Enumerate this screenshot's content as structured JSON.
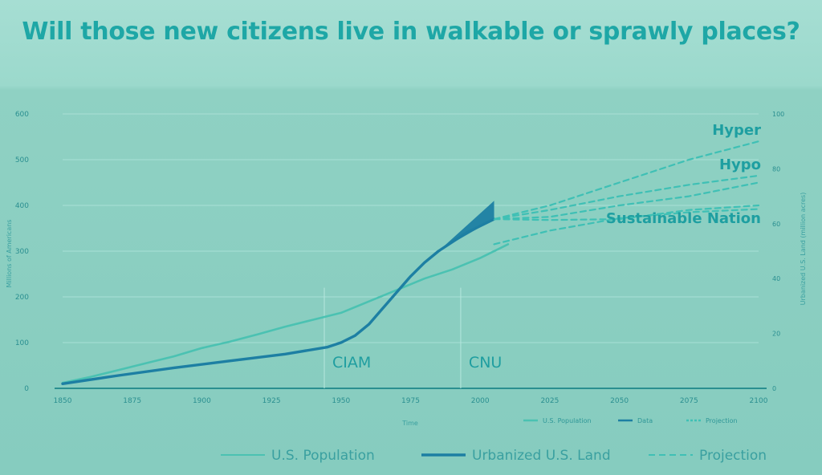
{
  "title": "Will those new citizens live in walkable or sprawly places?",
  "colors": {
    "population": "#4bc2b2",
    "urbanized": "#1d7fa3",
    "projection": "#3fc0b5",
    "axis": "#2a8f90"
  },
  "chart_data": {
    "type": "line",
    "xlabel": "Time",
    "ylabel": "Millions of Americans",
    "y2label": "Urbanized U.S. Land (million acres)",
    "xlim": [
      1850,
      2100
    ],
    "ylim": [
      0,
      600
    ],
    "y2lim": [
      0,
      100
    ],
    "x_ticks": [
      1850,
      1875,
      1900,
      1925,
      1950,
      1975,
      2000,
      2025,
      2050,
      2075,
      2100
    ],
    "y_ticks": [
      0,
      100,
      200,
      300,
      400,
      500,
      600
    ],
    "y2_ticks": [
      0,
      20,
      40,
      60,
      80,
      100
    ],
    "series": [
      {
        "name": "U.S. Population",
        "axis": "left",
        "style": "solid",
        "x": [
          1850,
          1860,
          1870,
          1880,
          1890,
          1900,
          1910,
          1920,
          1930,
          1940,
          1950,
          1960,
          1970,
          1980,
          1990,
          2000,
          2010
        ],
        "y": [
          12,
          25,
          40,
          55,
          70,
          88,
          102,
          118,
          135,
          150,
          165,
          190,
          215,
          240,
          260,
          285,
          315
        ]
      },
      {
        "name": "Urbanized U.S. Land",
        "axis": "left",
        "style": "solid",
        "x": [
          1850,
          1870,
          1890,
          1910,
          1930,
          1945,
          1950,
          1955,
          1960,
          1965,
          1970,
          1975,
          1980,
          1985,
          1990,
          1995,
          2000,
          2005
        ],
        "y": [
          10,
          28,
          45,
          60,
          75,
          90,
          100,
          115,
          140,
          175,
          210,
          245,
          275,
          300,
          320,
          340,
          355,
          370
        ]
      },
      {
        "name": "Hyper",
        "axis": "left",
        "style": "dashed",
        "x": [
          2005,
          2025,
          2050,
          2075,
          2100
        ],
        "y": [
          370,
          400,
          450,
          500,
          540
        ]
      },
      {
        "name": "Hypo",
        "axis": "left",
        "style": "dashed",
        "x": [
          2005,
          2025,
          2050,
          2075,
          2100
        ],
        "y": [
          370,
          390,
          420,
          445,
          465
        ]
      },
      {
        "name": "",
        "axis": "left",
        "style": "dashed",
        "x": [
          2005,
          2025,
          2050,
          2075,
          2100
        ],
        "y": [
          370,
          375,
          400,
          420,
          450
        ]
      },
      {
        "name": "Sustainable Nation",
        "axis": "left",
        "style": "dashed",
        "x": [
          2005,
          2025,
          2050,
          2075,
          2100
        ],
        "y": [
          370,
          368,
          370,
          390,
          400
        ]
      },
      {
        "name": "",
        "axis": "left",
        "style": "dashed",
        "x": [
          2005,
          2025,
          2050,
          2075,
          2100
        ],
        "y": [
          315,
          345,
          372,
          385,
          392
        ]
      }
    ],
    "annotations": [
      {
        "label": "CIAM",
        "x": 1944
      },
      {
        "label": "CNU",
        "x": 1993
      }
    ],
    "legend_small": [
      "U.S. Population",
      "Data",
      "Projection"
    ],
    "legend_bottom": [
      "U.S. Population",
      "Urbanized U.S. Land",
      "Projection"
    ],
    "grid": true,
    "legend": "bottom"
  }
}
